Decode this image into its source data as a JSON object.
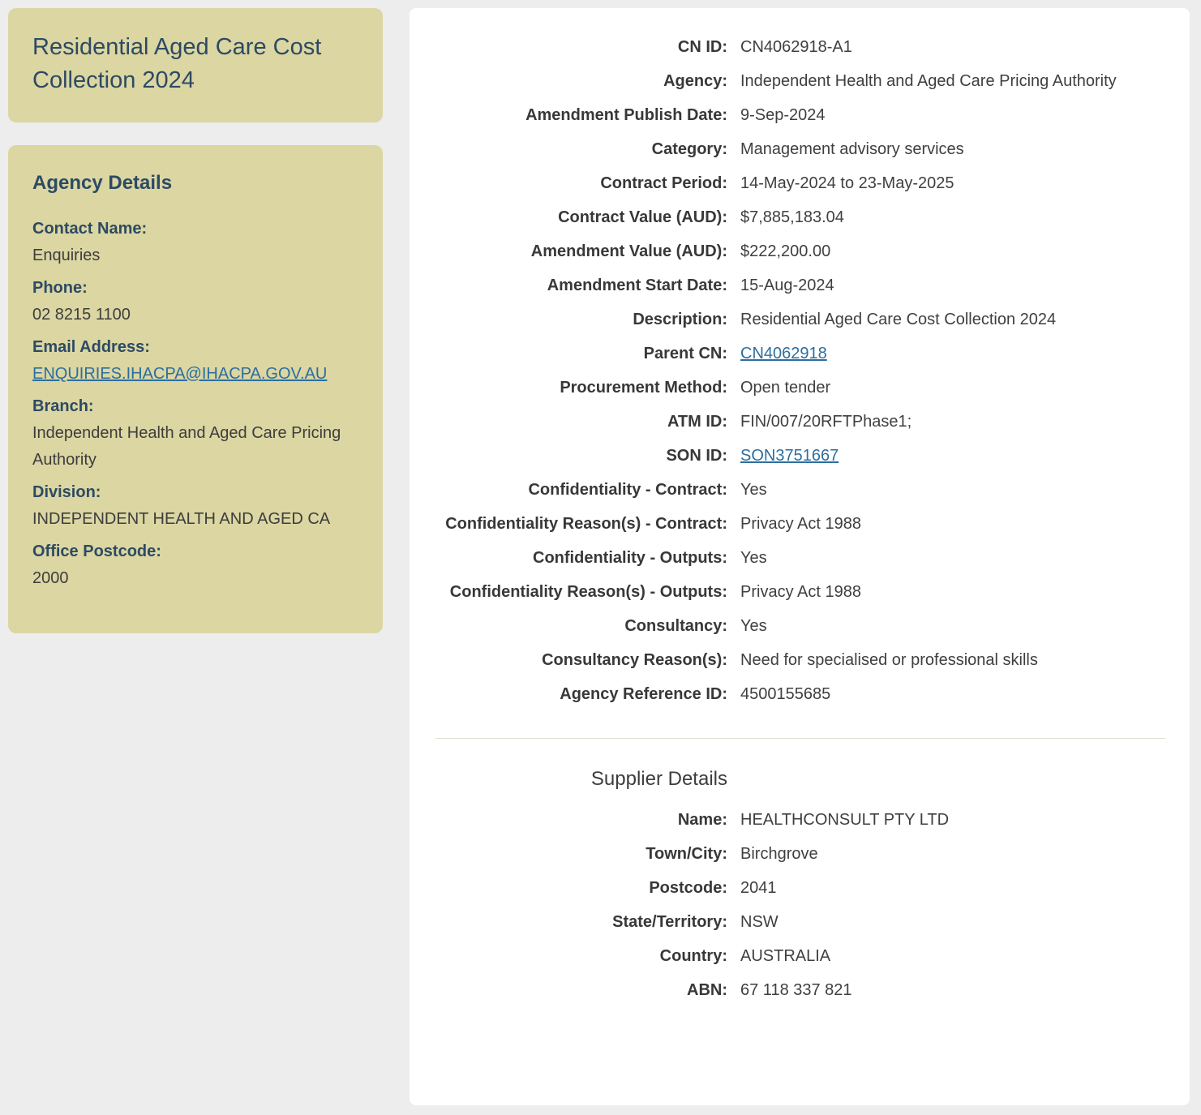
{
  "colors": {
    "page_background": "#ededed",
    "sidebar_card_background": "#dbd6a2",
    "panel_background": "#ffffff",
    "heading_text": "#2d4a63",
    "body_text": "#3f3f3f",
    "link": "#2d6e9e",
    "divider": "#e0dfcc"
  },
  "sidebar": {
    "title": "Residential Aged Care Cost Collection 2024",
    "agency_details": {
      "heading": "Agency Details",
      "fields": [
        {
          "name": "contact-name",
          "label": "Contact Name:",
          "value": "Enquiries"
        },
        {
          "name": "phone",
          "label": "Phone:",
          "value": "02 8215 1100"
        },
        {
          "name": "email-address",
          "label": "Email Address:",
          "value": "ENQUIRIES.IHACPA@IHACPA.GOV.AU",
          "link": true,
          "link_name": "email-link"
        },
        {
          "name": "branch",
          "label": "Branch:",
          "value": "Independent Health and Aged Care Pricing Authority"
        },
        {
          "name": "division",
          "label": "Division:",
          "value": "INDEPENDENT HEALTH AND AGED CA"
        },
        {
          "name": "office-postcode",
          "label": "Office Postcode:",
          "value": "2000"
        }
      ]
    }
  },
  "main": {
    "contract_fields": [
      {
        "name": "cn-id",
        "label": "CN ID:",
        "value": "CN4062918-A1"
      },
      {
        "name": "agency",
        "label": "Agency:",
        "value": "Independent Health and Aged Care Pricing Authority"
      },
      {
        "name": "amendment-publish-date",
        "label": "Amendment Publish Date:",
        "value": "9-Sep-2024"
      },
      {
        "name": "category",
        "label": "Category:",
        "value": "Management advisory services"
      },
      {
        "name": "contract-period",
        "label": "Contract Period:",
        "value": "14-May-2024 to 23-May-2025"
      },
      {
        "name": "contract-value",
        "label": "Contract Value (AUD):",
        "value": "$7,885,183.04"
      },
      {
        "name": "amendment-value",
        "label": "Amendment Value (AUD):",
        "value": "$222,200.00"
      },
      {
        "name": "amendment-start-date",
        "label": "Amendment Start Date:",
        "value": "15-Aug-2024"
      },
      {
        "name": "description",
        "label": "Description:",
        "value": "Residential Aged Care Cost Collection 2024"
      },
      {
        "name": "parent-cn",
        "label": "Parent CN:",
        "value": "CN4062918",
        "link": true,
        "link_name": "parent-cn-link"
      },
      {
        "name": "procurement-method",
        "label": "Procurement Method:",
        "value": "Open tender"
      },
      {
        "name": "atm-id",
        "label": "ATM ID:",
        "value": "FIN/007/20RFTPhase1;"
      },
      {
        "name": "son-id",
        "label": "SON ID:",
        "value": "SON3751667",
        "link": true,
        "link_name": "son-id-link"
      },
      {
        "name": "confidentiality-contract",
        "label": "Confidentiality - Contract:",
        "value": "Yes"
      },
      {
        "name": "confidentiality-reasons-contract",
        "label": "Confidentiality Reason(s) - Contract:",
        "value": "Privacy Act 1988"
      },
      {
        "name": "confidentiality-outputs",
        "label": "Confidentiality - Outputs:",
        "value": "Yes"
      },
      {
        "name": "confidentiality-reasons-outputs",
        "label": "Confidentiality Reason(s) - Outputs:",
        "value": "Privacy Act 1988"
      },
      {
        "name": "consultancy",
        "label": "Consultancy:",
        "value": "Yes"
      },
      {
        "name": "consultancy-reasons",
        "label": "Consultancy Reason(s):",
        "value": "Need for specialised or professional skills"
      },
      {
        "name": "agency-reference-id",
        "label": "Agency Reference ID:",
        "value": "4500155685"
      }
    ],
    "supplier": {
      "heading": "Supplier Details",
      "fields": [
        {
          "name": "supplier-name",
          "label": "Name:",
          "value": "HEALTHCONSULT PTY LTD"
        },
        {
          "name": "supplier-town-city",
          "label": "Town/City:",
          "value": "Birchgrove"
        },
        {
          "name": "supplier-postcode",
          "label": "Postcode:",
          "value": "2041"
        },
        {
          "name": "supplier-state-territory",
          "label": "State/Territory:",
          "value": "NSW"
        },
        {
          "name": "supplier-country",
          "label": "Country:",
          "value": "AUSTRALIA"
        },
        {
          "name": "supplier-abn",
          "label": "ABN:",
          "value": "67 118 337 821"
        }
      ]
    }
  }
}
